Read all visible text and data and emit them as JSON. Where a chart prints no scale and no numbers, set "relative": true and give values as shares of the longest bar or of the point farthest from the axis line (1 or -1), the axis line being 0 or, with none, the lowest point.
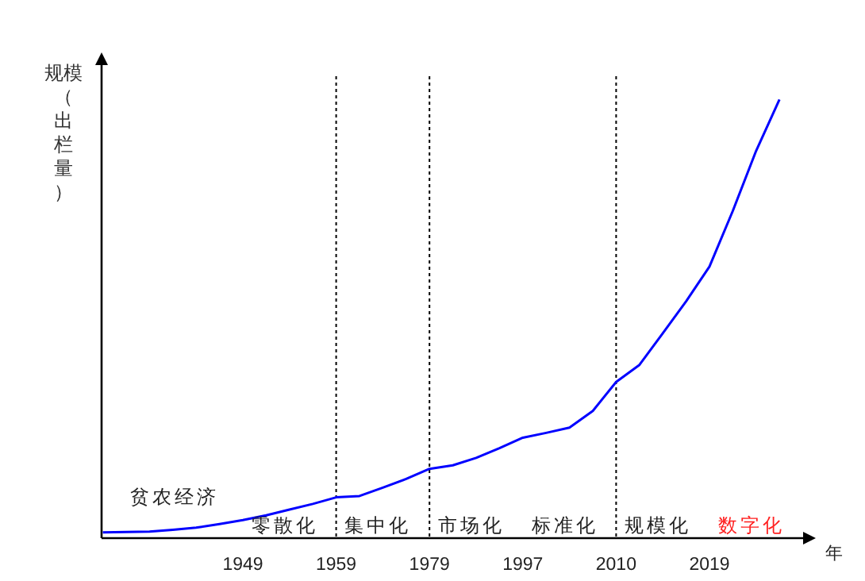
{
  "chart_data": {
    "type": "line",
    "relative": true,
    "ylabel": "规模（出栏量）",
    "xlabel": "年",
    "categories": [
      null,
      null,
      null,
      null,
      null,
      null,
      "1949",
      null,
      null,
      null,
      "1959",
      null,
      null,
      null,
      "1979",
      null,
      null,
      null,
      "1997",
      null,
      null,
      null,
      "2010",
      null,
      null,
      null,
      "2019",
      null,
      null,
      null
    ],
    "series": [
      {
        "color": "#0000ff",
        "values": [
          0.013,
          0.014,
          0.015,
          0.019,
          0.024,
          0.032,
          0.041,
          0.052,
          0.065,
          0.078,
          0.093,
          0.096,
          0.115,
          0.135,
          0.158,
          0.166,
          0.183,
          0.205,
          0.229,
          0.24,
          0.252,
          0.29,
          0.356,
          0.395,
          0.467,
          0.54,
          0.619,
          0.746,
          0.883,
          1
        ]
      }
    ],
    "ref_lines": [
      {
        "axis": "x",
        "value": "1959",
        "line_style": "dotted",
        "color": "#000000"
      },
      {
        "axis": "x",
        "value": "1979",
        "line_style": "dotted",
        "color": "#000000"
      },
      {
        "axis": "x",
        "value": "2010",
        "line_style": "dotted",
        "color": "#000000"
      }
    ],
    "annotations": [
      "贫农经济",
      "零散化",
      "集中化",
      "市场化",
      "标准化",
      "规模化",
      "数字化"
    ],
    "marker": "none",
    "line_style": "solid",
    "grid": false
  }
}
